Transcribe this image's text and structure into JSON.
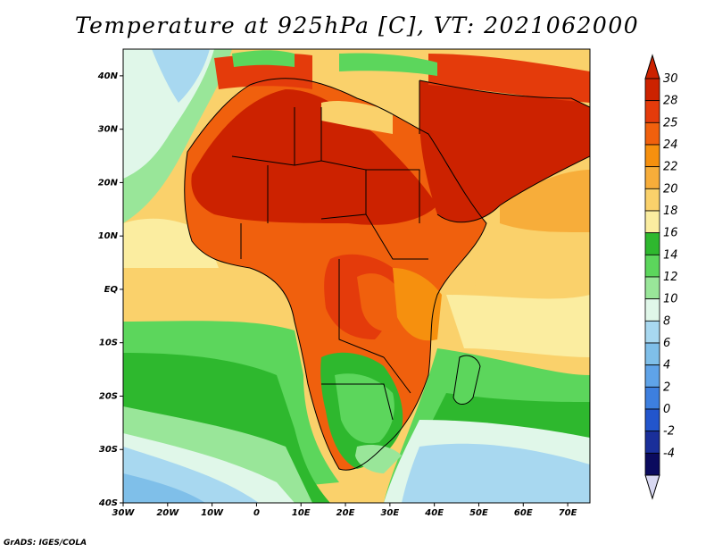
{
  "title": "Temperature at 925hPa [C], VT: 2021062000",
  "credit": "GrADS: IGES/COLA",
  "map": {
    "lat_labels": [
      "40N",
      "30N",
      "20N",
      "10N",
      "EQ",
      "10S",
      "20S",
      "30S",
      "40S"
    ],
    "lon_labels": [
      "30W",
      "20W",
      "10W",
      "0",
      "10E",
      "20E",
      "30E",
      "40E",
      "50E",
      "60E",
      "70E"
    ],
    "lat_range": [
      -40,
      45
    ],
    "lon_range": [
      -30,
      75
    ]
  },
  "colorbar": {
    "labels": [
      "30",
      "28",
      "25",
      "24",
      "22",
      "20",
      "18",
      "16",
      "14",
      "12",
      "10",
      "8",
      "6",
      "4",
      "2",
      "0",
      "-2",
      "-4"
    ],
    "colors": [
      "#cc2200",
      "#e43b0b",
      "#f0600d",
      "#f6900e",
      "#f7ad3a",
      "#fad16b",
      "#fbeda0",
      "#2eb82e",
      "#5cd65c",
      "#99e699",
      "#e0f7e9",
      "#a8d8f0",
      "#7fbfe9",
      "#5fa3e8",
      "#3d7fdf",
      "#2255cc",
      "#1a2f9a",
      "#0b0b5e"
    ],
    "top_arrow_color": "#cc2200",
    "bottom_arrow_color": "#d9d9f2"
  }
}
